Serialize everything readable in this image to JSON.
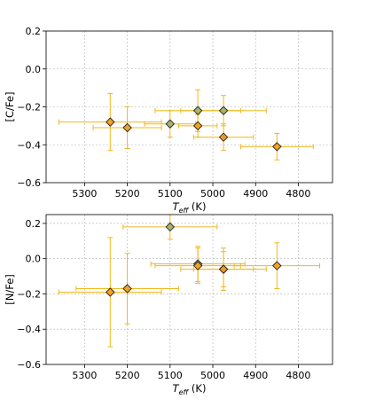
{
  "chart_data": [
    {
      "type": "scatter",
      "xlabel": "T",
      "xlabel_sub": "eff",
      "xlabel_unit": "(K)",
      "ylabel": "[C/Fe]",
      "xlim": [
        5390,
        4720
      ],
      "ylim": [
        -0.6,
        0.2
      ],
      "xticks": [
        5300,
        5200,
        5100,
        5000,
        4900,
        4800
      ],
      "yticks": [
        0.2,
        0.0,
        -0.2,
        -0.4,
        -0.6
      ],
      "ytick_labels": [
        "0.2",
        "0.0",
        "−0.2",
        "−0.4",
        "−0.6"
      ],
      "grid": true,
      "points": [
        {
          "x": 5240,
          "y": -0.28,
          "xerr": 120,
          "yerr": 0.15,
          "color": "#f5a21c"
        },
        {
          "x": 5200,
          "y": -0.31,
          "xerr": 80,
          "yerr": 0.11,
          "color": "#f5a21c"
        },
        {
          "x": 5100,
          "y": -0.29,
          "xerr": 60,
          "yerr": 0.07,
          "color": "#a6b46c"
        },
        {
          "x": 5035,
          "y": -0.22,
          "xerr": 100,
          "yerr": 0.11,
          "color": "#a6b46c"
        },
        {
          "x": 5035,
          "y": -0.3,
          "xerr": 45,
          "yerr": 0.06,
          "color": "#f5a21c"
        },
        {
          "x": 4975,
          "y": -0.22,
          "xerr": 100,
          "yerr": 0.08,
          "color": "#a6b46c"
        },
        {
          "x": 4975,
          "y": -0.36,
          "xerr": 70,
          "yerr": 0.07,
          "color": "#e69a2a"
        },
        {
          "x": 4850,
          "y": -0.41,
          "xerr": 85,
          "yerr": 0.07,
          "color": "#f5a21c"
        }
      ]
    },
    {
      "type": "scatter",
      "xlabel": "T",
      "xlabel_sub": "eff",
      "xlabel_unit": "(K)",
      "ylabel": "[N/Fe]",
      "xlim": [
        5390,
        4720
      ],
      "ylim": [
        -0.6,
        0.25
      ],
      "xticks": [
        5300,
        5200,
        5100,
        5000,
        4900,
        4800
      ],
      "yticks": [
        0.2,
        0.0,
        -0.2,
        -0.4,
        -0.6
      ],
      "ytick_labels": [
        "0.2",
        "0.0",
        "−0.2",
        "−0.4",
        "−0.6"
      ],
      "grid": true,
      "points": [
        {
          "x": 5240,
          "y": -0.19,
          "xerr": 120,
          "yerr": 0.31,
          "color": "#f5a21c"
        },
        {
          "x": 5200,
          "y": -0.17,
          "xerr": 120,
          "yerr": 0.2,
          "color": "#f5a21c"
        },
        {
          "x": 5100,
          "y": 0.18,
          "xerr": 110,
          "yerr": 0.07,
          "color": "#a6b46c"
        },
        {
          "x": 5035,
          "y": -0.03,
          "xerr": 110,
          "yerr": 0.1,
          "color": "#a6b46c"
        },
        {
          "x": 5035,
          "y": -0.04,
          "xerr": 100,
          "yerr": 0.1,
          "color": "#f5a21c"
        },
        {
          "x": 4975,
          "y": -0.06,
          "xerr": 70,
          "yerr": 0.1,
          "color": "#a6b46c"
        },
        {
          "x": 4975,
          "y": -0.06,
          "xerr": 100,
          "yerr": 0.12,
          "color": "#e69a2a"
        },
        {
          "x": 4850,
          "y": -0.04,
          "xerr": 100,
          "yerr": 0.13,
          "color": "#f5a21c"
        }
      ]
    }
  ]
}
